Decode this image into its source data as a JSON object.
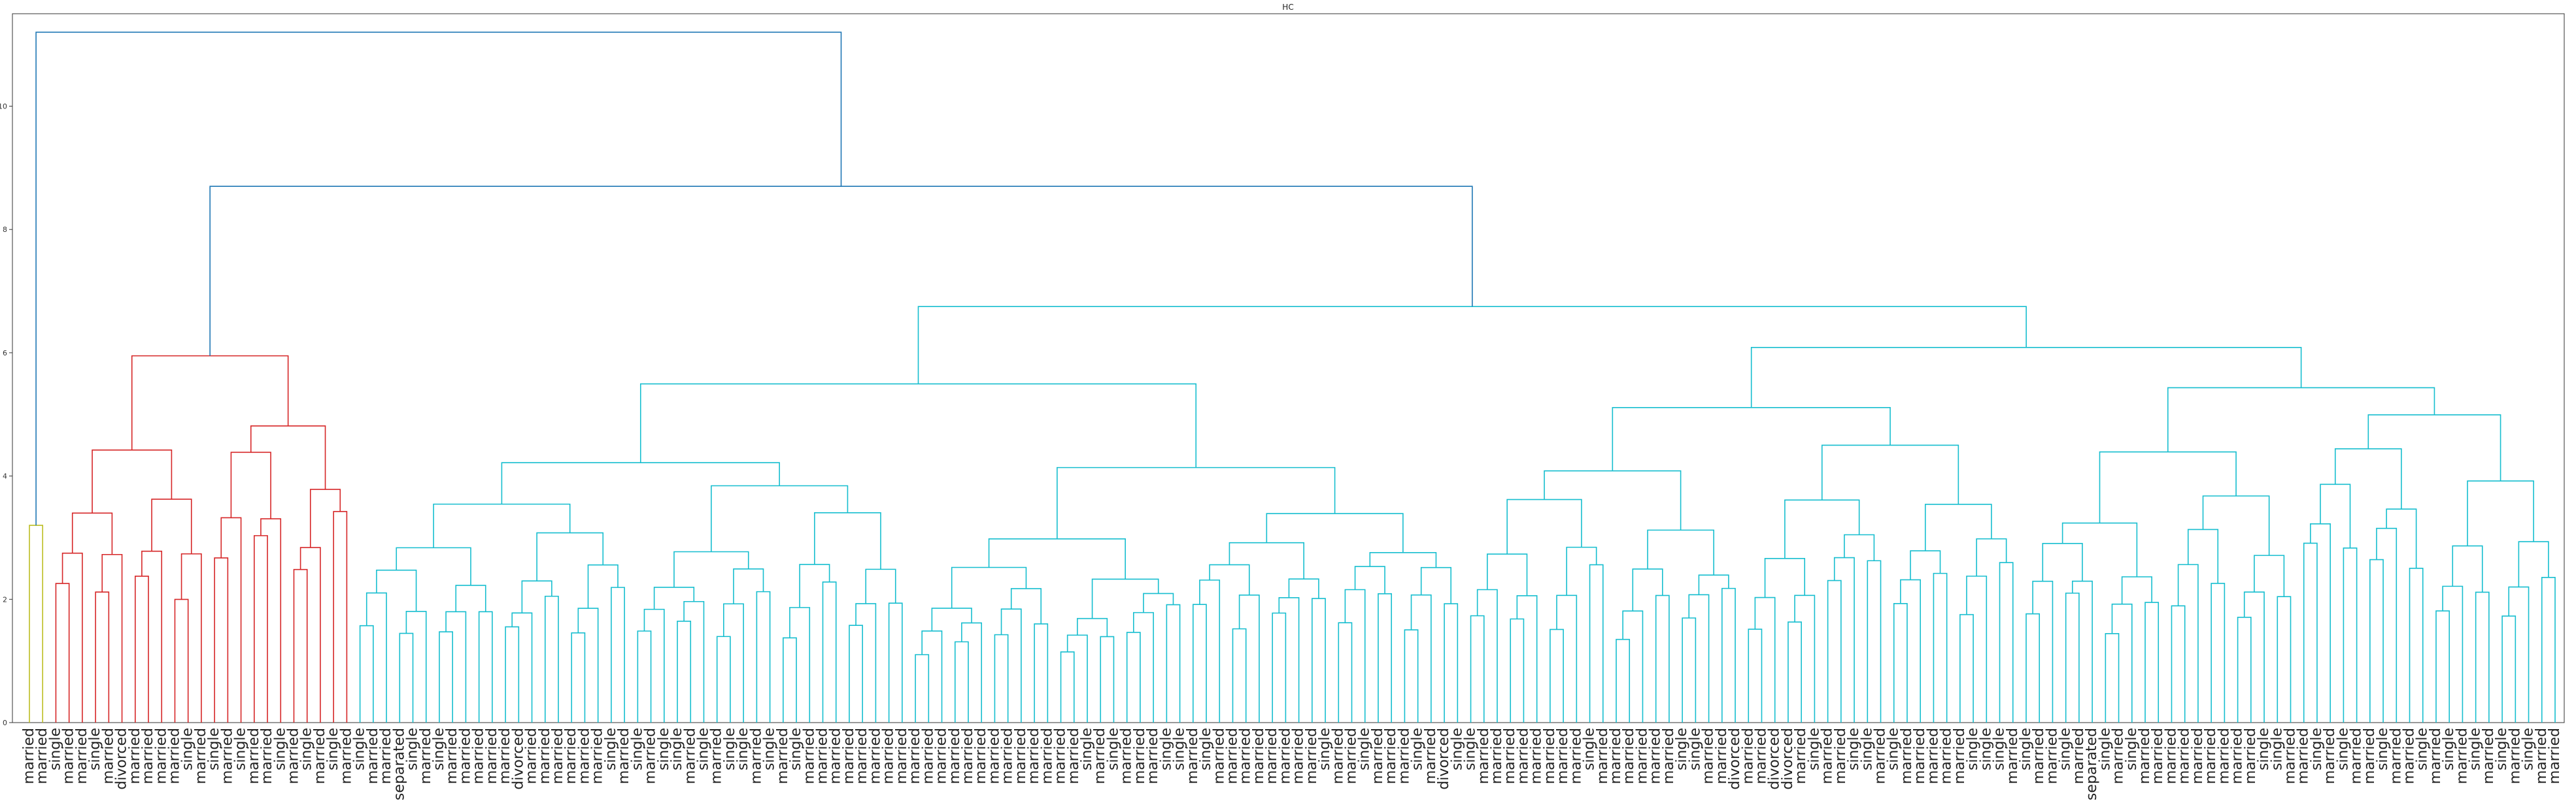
{
  "chart_data": {
    "type": "dendrogram",
    "title": "HC",
    "ylim": [
      0,
      11.5
    ],
    "yticks": [
      0,
      2,
      4,
      6,
      8,
      10
    ],
    "grid": false,
    "colors": {
      "first_cluster": "#bcbd22",
      "second_cluster": "#d62728",
      "third_cluster": "#17becf",
      "top_links": "#1f77b4"
    },
    "merge_heights": {
      "root": 11.2,
      "second_level": 8.7,
      "red_cluster_top": 5.95,
      "cyan_cluster_top": 6.75,
      "yellow_green_leaf_pair": 3.2
    },
    "leaf_labels": [
      "married",
      "married",
      "single",
      "married",
      "married",
      "single",
      "married",
      "divorced",
      "married",
      "married",
      "married",
      "married",
      "single",
      "married",
      "single",
      "married",
      "single",
      "married",
      "married",
      "single",
      "married",
      "single",
      "married",
      "single",
      "married",
      "single",
      "married",
      "married",
      "separated",
      "single",
      "married",
      "single",
      "married",
      "married",
      "married",
      "married",
      "married",
      "divorced",
      "married",
      "married",
      "married",
      "married",
      "married",
      "married",
      "single",
      "married",
      "single",
      "married",
      "single",
      "single",
      "married",
      "single",
      "married",
      "single",
      "single",
      "married",
      "single",
      "married",
      "single",
      "married",
      "married",
      "married",
      "married",
      "married",
      "married",
      "married",
      "married",
      "married",
      "married",
      "married",
      "married",
      "married",
      "married",
      "married",
      "married",
      "married",
      "married",
      "married",
      "married",
      "married",
      "single",
      "married",
      "single",
      "married",
      "married",
      "married",
      "single",
      "single",
      "married",
      "single",
      "married",
      "married",
      "married",
      "married",
      "married",
      "married",
      "married",
      "married",
      "single",
      "married",
      "married",
      "single",
      "married",
      "married",
      "married",
      "single",
      "married",
      "divorced",
      "single",
      "single",
      "married",
      "married",
      "married",
      "married",
      "married",
      "married",
      "married",
      "married",
      "single",
      "married",
      "married",
      "married",
      "married",
      "married",
      "married",
      "single",
      "single",
      "married",
      "married",
      "divorced",
      "married",
      "married",
      "divorced",
      "divorced",
      "married",
      "single",
      "married",
      "married",
      "single",
      "single",
      "married",
      "single",
      "married",
      "married",
      "married",
      "married",
      "married",
      "single",
      "single",
      "single",
      "married",
      "single",
      "married",
      "married",
      "single",
      "married",
      "separated",
      "single",
      "married",
      "single",
      "married",
      "married",
      "married",
      "married",
      "married",
      "married",
      "married",
      "married",
      "married",
      "single",
      "single",
      "married",
      "married",
      "single",
      "married",
      "single",
      "married",
      "married",
      "single",
      "married",
      "married",
      "single",
      "married",
      "single",
      "married",
      "single",
      "married",
      "single",
      "married",
      "single",
      "married",
      "married"
    ]
  }
}
